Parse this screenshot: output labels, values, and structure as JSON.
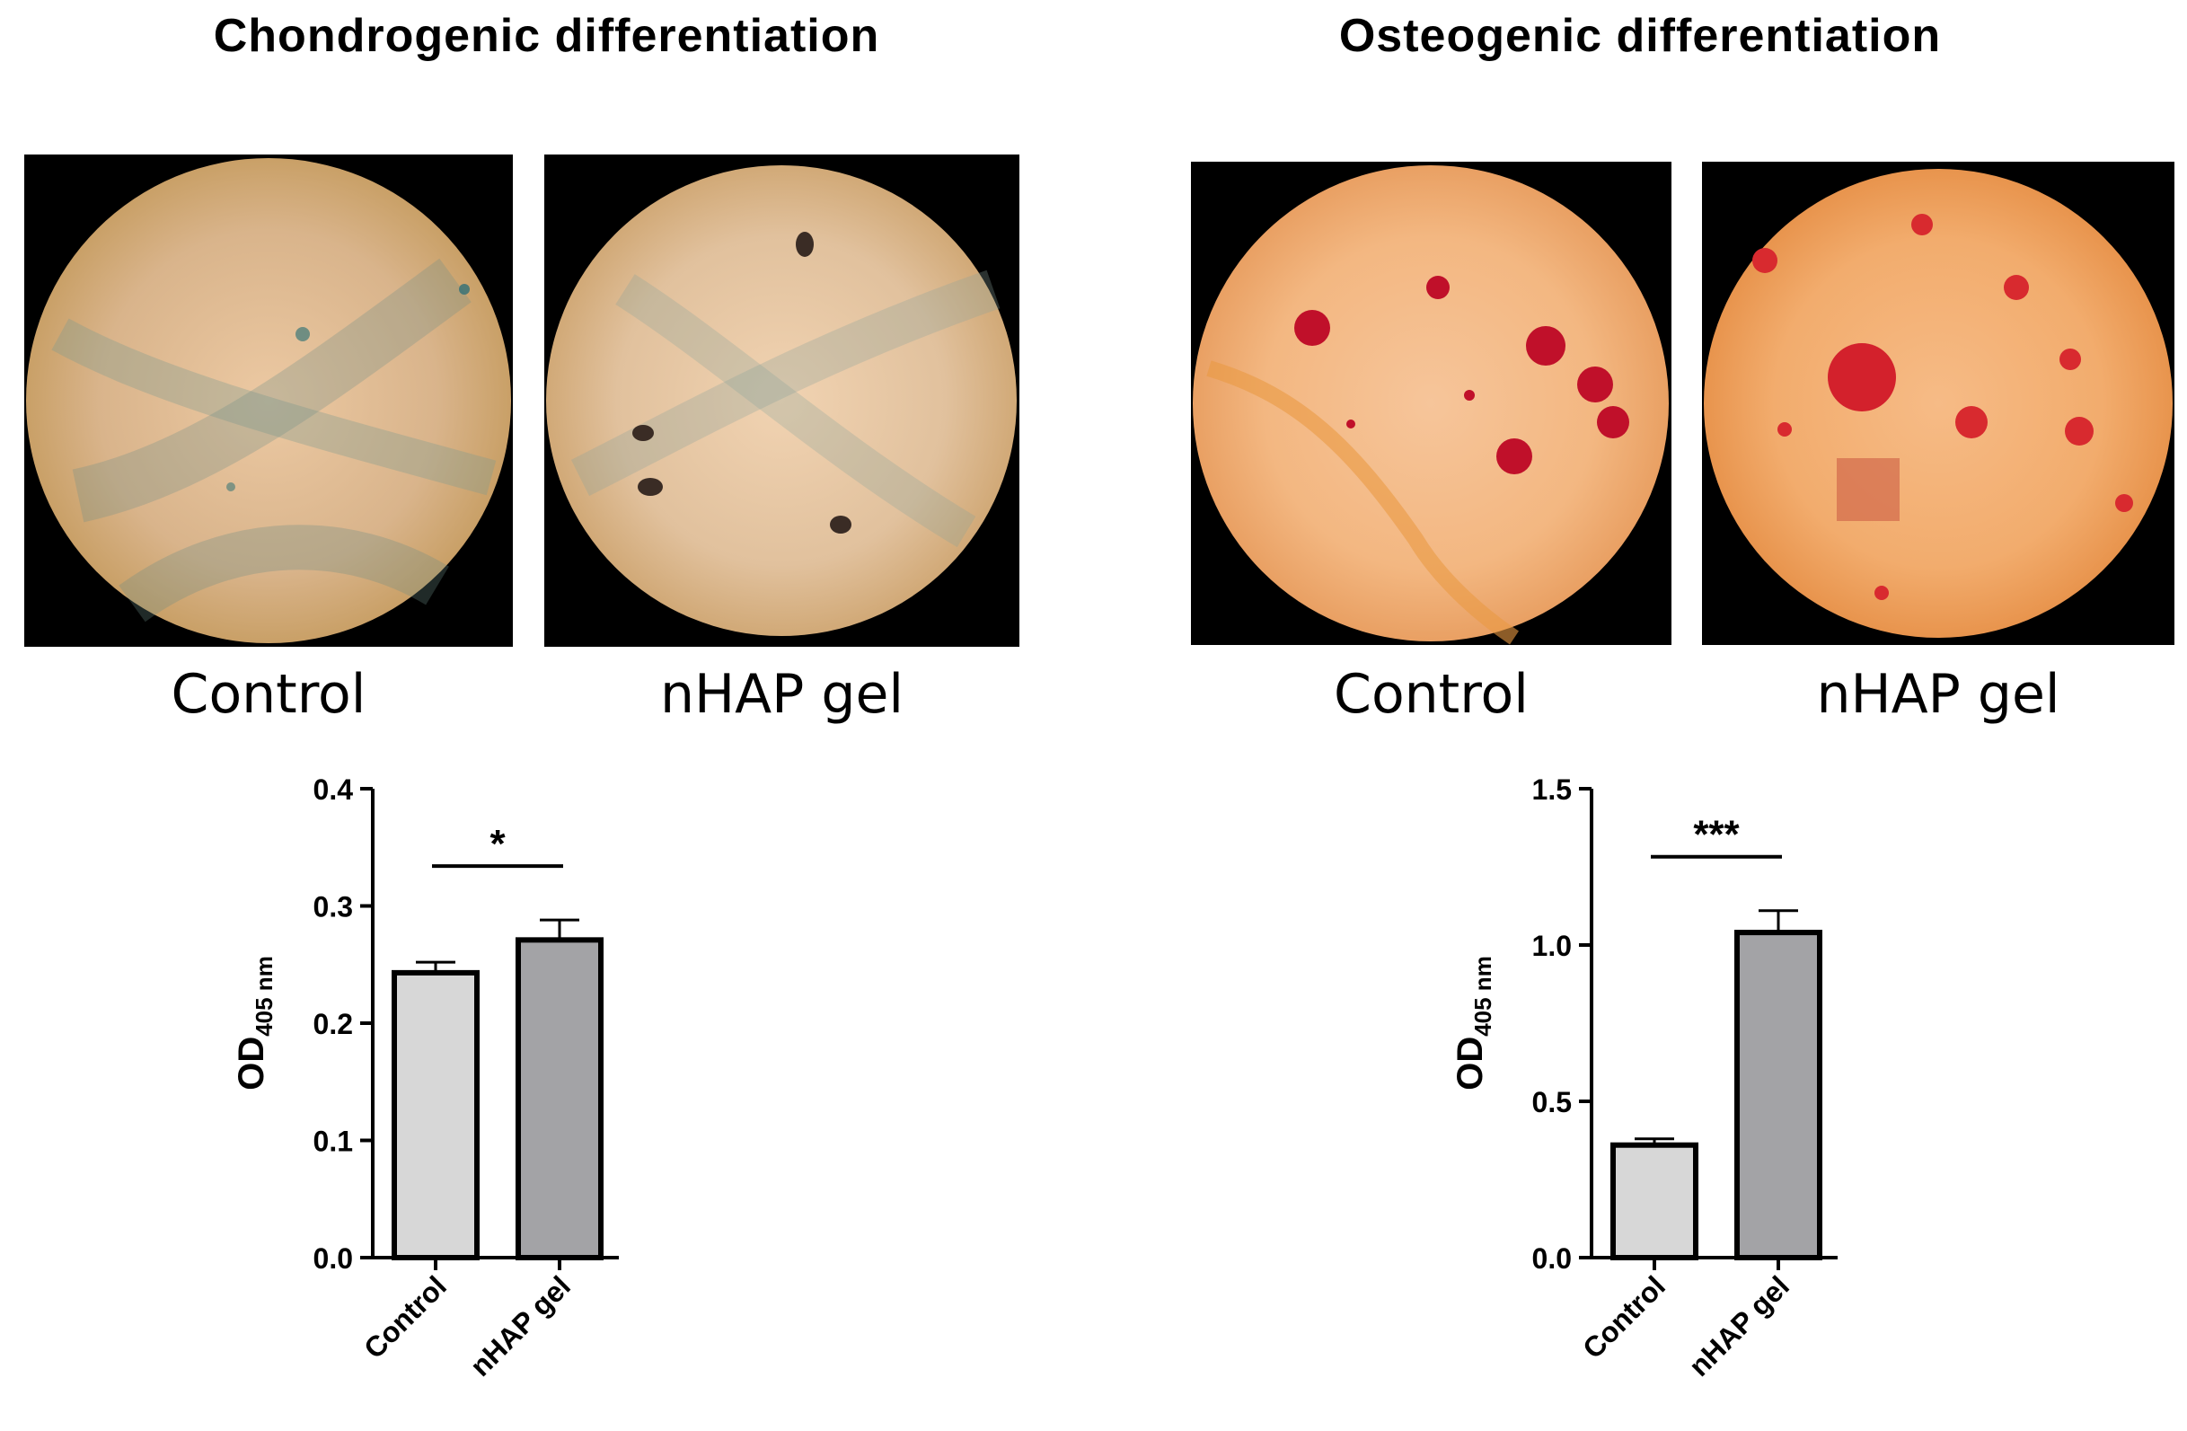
{
  "figure": {
    "panels": [
      {
        "title": "Chondrogenic differentiation",
        "images": [
          {
            "label": "Control",
            "stain": "alcian-blue-stained-cells-micrograph"
          },
          {
            "label": "nHAP gel",
            "stain": "alcian-blue-stained-cells-micrograph"
          }
        ]
      },
      {
        "title": "Osteogenic differentiation",
        "images": [
          {
            "label": "Control",
            "stain": "alizarin-red-stained-cells-micrograph"
          },
          {
            "label": "nHAP gel",
            "stain": "alizarin-red-stained-cells-micrograph"
          }
        ]
      }
    ]
  },
  "chart_data": [
    {
      "type": "bar",
      "categories": [
        "Control",
        "nHAP gel"
      ],
      "values": [
        0.243,
        0.271
      ],
      "errors": [
        0.009,
        0.017
      ],
      "colors": [
        "#d7d7d7",
        "#a3a3a6"
      ],
      "ylabel_main": "OD",
      "ylabel_sub": "405 nm",
      "ylim": [
        0,
        0.4
      ],
      "yticks": [
        "0.0",
        "0.1",
        "0.2",
        "0.3",
        "0.4"
      ],
      "significance": "*",
      "grid": false
    },
    {
      "type": "bar",
      "categories": [
        "Control",
        "nHAP gel"
      ],
      "values": [
        0.36,
        1.04
      ],
      "errors": [
        0.02,
        0.07
      ],
      "colors": [
        "#d7d7d7",
        "#a3a3a6"
      ],
      "ylabel_main": "OD",
      "ylabel_sub": "405 nm",
      "ylim": [
        0,
        1.5
      ],
      "yticks": [
        "0.0",
        "0.5",
        "1.0",
        "1.5"
      ],
      "significance": "***",
      "grid": false
    }
  ]
}
